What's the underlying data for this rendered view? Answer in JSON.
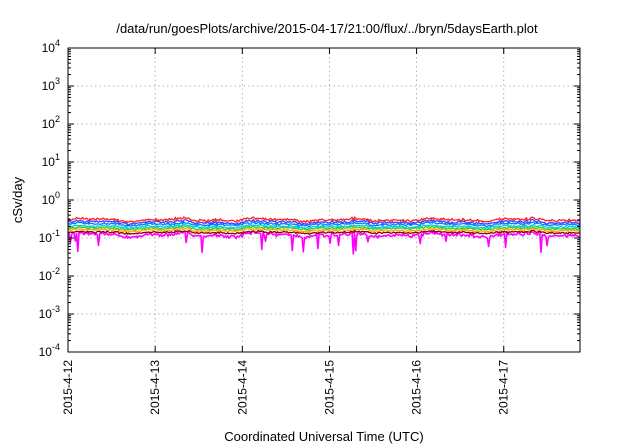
{
  "chart_data": {
    "type": "line",
    "title": "/data/run/goesPlots/archive/2015-04-17/21:00/flux/../bryn/5daysEarth.plot",
    "xlabel": "Coordinated Universal Time (UTC)",
    "ylabel": "cSv/day",
    "yscale": "log",
    "ylim": [
      0.0001,
      10000
    ],
    "xlim": [
      "2015-04-12",
      "2015-04-17 21:00"
    ],
    "x_ticks": [
      "2015-4-12",
      "2015-4-13",
      "2015-4-14",
      "2015-4-15",
      "2015-4-16",
      "2015-4-17"
    ],
    "y_ticks": [
      {
        "base": "10",
        "exp": "4"
      },
      {
        "base": "10",
        "exp": "3"
      },
      {
        "base": "10",
        "exp": "2"
      },
      {
        "base": "10",
        "exp": "1"
      },
      {
        "base": "10",
        "exp": "0"
      },
      {
        "base": "10",
        "exp": "-1"
      },
      {
        "base": "10",
        "exp": "-2"
      },
      {
        "base": "10",
        "exp": "-3"
      },
      {
        "base": "10",
        "exp": "-4"
      }
    ],
    "grid": true,
    "legend": "none",
    "series_colors": [
      "#ff00ff",
      "#8b0000",
      "#ffa500",
      "#32cd32",
      "#00ced1",
      "#0080ff",
      "#4040ff",
      "#ff2020"
    ],
    "series_typical_values": [
      0.12,
      0.14,
      0.16,
      0.18,
      0.2,
      0.23,
      0.26,
      0.3
    ],
    "series_variation": [
      0.22,
      0.12,
      0.12,
      0.12,
      0.12,
      0.14,
      0.16,
      0.16
    ]
  }
}
